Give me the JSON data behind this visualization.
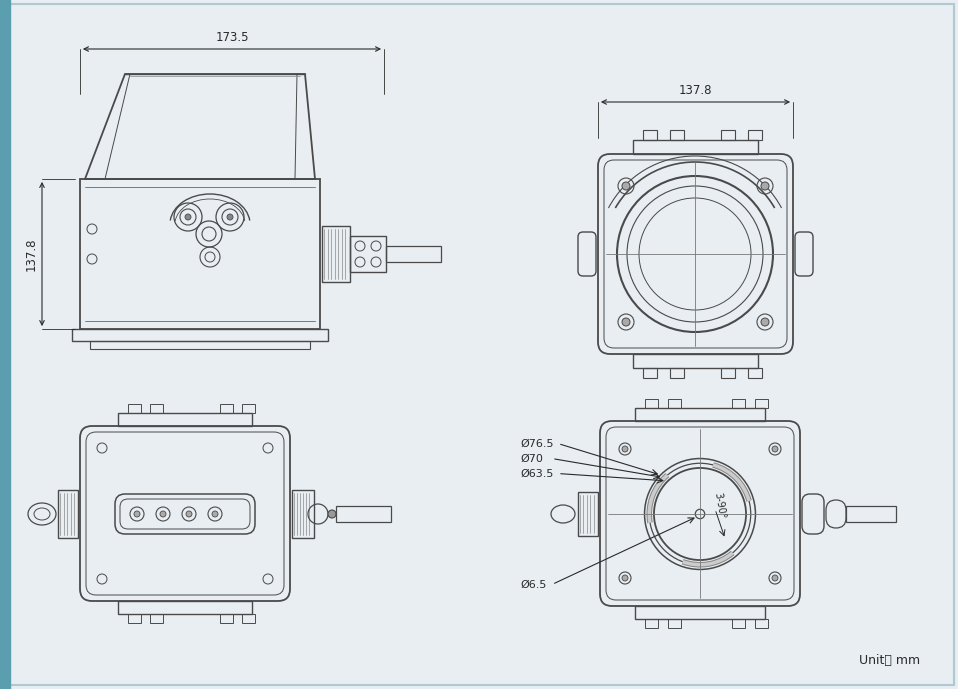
{
  "bg_color": "#e8eef2",
  "line_color": "#4a4a4a",
  "dim_color": "#2a2a2a",
  "dim_173_5": "173.5",
  "dim_137_8_top": "137.8",
  "dim_137_8_left": "137.8",
  "dim_d76_5": "Ø76.5",
  "dim_d70": "Ø70",
  "dim_d63_5": "Ø63.5",
  "dim_d6_5": "Ø6.5",
  "dim_3_90": "3-90°",
  "unit": "Unit： mm",
  "accent_color": "#5a9eb0"
}
